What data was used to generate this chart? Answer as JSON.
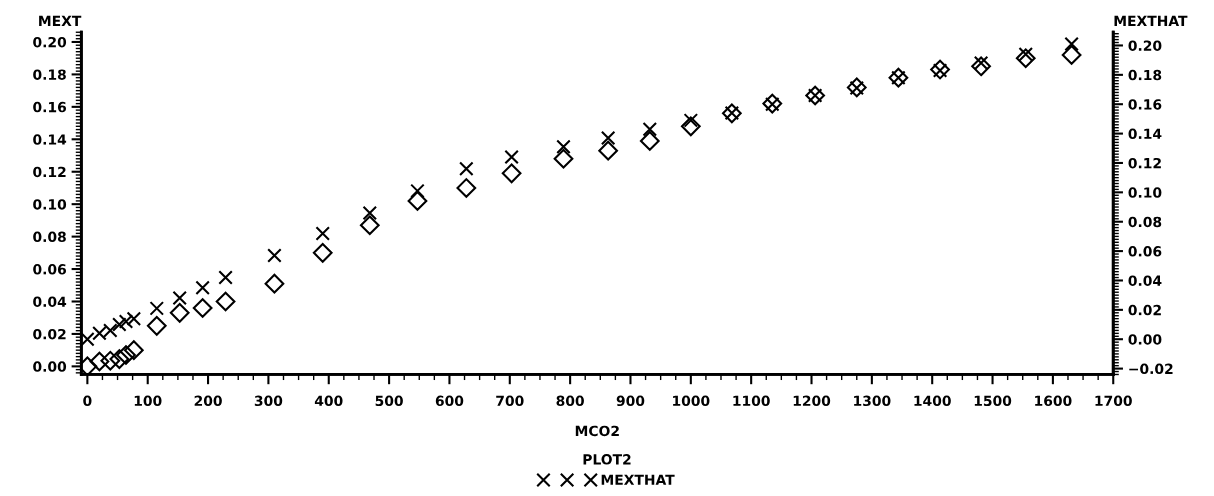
{
  "chart_data": {
    "type": "scatter",
    "xlabel": "MCO2",
    "ylabel": "MEXT",
    "y2label": "MEXTHAT",
    "legend_title": "PLOT2",
    "x": [
      0,
      20,
      38,
      53,
      64,
      77,
      115,
      153,
      191,
      229,
      310,
      390,
      468,
      547,
      628,
      703,
      789,
      863,
      932,
      1000,
      1068,
      1135,
      1206,
      1275,
      1344,
      1413,
      1481,
      1555,
      1631
    ],
    "series": [
      {
        "color": "#000000",
        "marker": "diamond",
        "values": [
          0.0,
          0.003,
          0.0035,
          0.0045,
          0.007,
          0.01,
          0.025,
          0.033,
          0.036,
          0.04,
          0.051,
          0.07,
          0.087,
          0.102,
          0.11,
          0.119,
          0.128,
          0.133,
          0.139,
          0.148,
          0.156,
          0.162,
          0.167,
          0.172,
          0.178,
          0.183,
          0.185,
          0.19,
          0.192
        ]
      },
      {
        "name": "MEXTHAT",
        "color": "#000000",
        "marker": "cross",
        "axis": "y2",
        "values": [
          0.0,
          0.004,
          0.006,
          0.01,
          0.012,
          0.014,
          0.021,
          0.028,
          0.035,
          0.042,
          0.057,
          0.072,
          0.086,
          0.101,
          0.116,
          0.124,
          0.131,
          0.137,
          0.143,
          0.149,
          0.154,
          0.16,
          0.166,
          0.171,
          0.178,
          0.183,
          0.188,
          0.194,
          0.201
        ]
      }
    ],
    "xlim": [
      -10,
      1700
    ],
    "xticks": [
      0,
      100,
      200,
      300,
      400,
      500,
      600,
      700,
      800,
      900,
      1000,
      1100,
      1200,
      1300,
      1400,
      1500,
      1600,
      1700
    ],
    "ylim": [
      -0.005,
      0.206
    ],
    "yticks": [
      {
        "value": 0,
        "label": "0.00"
      },
      {
        "value": 0.02,
        "label": "0.02"
      },
      {
        "value": 0.04,
        "label": "0.04"
      },
      {
        "value": 0.06,
        "label": "0.06"
      },
      {
        "value": 0.08,
        "label": "0.08"
      },
      {
        "value": 0.1,
        "label": "0.10"
      },
      {
        "value": 0.12,
        "label": "0.12"
      },
      {
        "value": 0.14,
        "label": "0.14"
      },
      {
        "value": 0.16,
        "label": "0.16"
      },
      {
        "value": 0.18,
        "label": "0.18"
      },
      {
        "value": 0.2,
        "label": "0.20"
      }
    ],
    "y2lim": [
      -0.024,
      0.209
    ],
    "y2ticks": [
      {
        "value": -0.02,
        "label": "−0.02"
      },
      {
        "value": 0,
        "label": "0.00"
      },
      {
        "value": 0.02,
        "label": "0.02"
      },
      {
        "value": 0.04,
        "label": "0.04"
      },
      {
        "value": 0.06,
        "label": "0.06"
      },
      {
        "value": 0.08,
        "label": "0.08"
      },
      {
        "value": 0.1,
        "label": "0.10"
      },
      {
        "value": 0.12,
        "label": "0.12"
      },
      {
        "value": 0.14,
        "label": "0.14"
      },
      {
        "value": 0.16,
        "label": "0.16"
      },
      {
        "value": 0.18,
        "label": "0.18"
      },
      {
        "value": 0.2,
        "label": "0.20"
      }
    ],
    "grid": false,
    "legend": "bottom"
  }
}
